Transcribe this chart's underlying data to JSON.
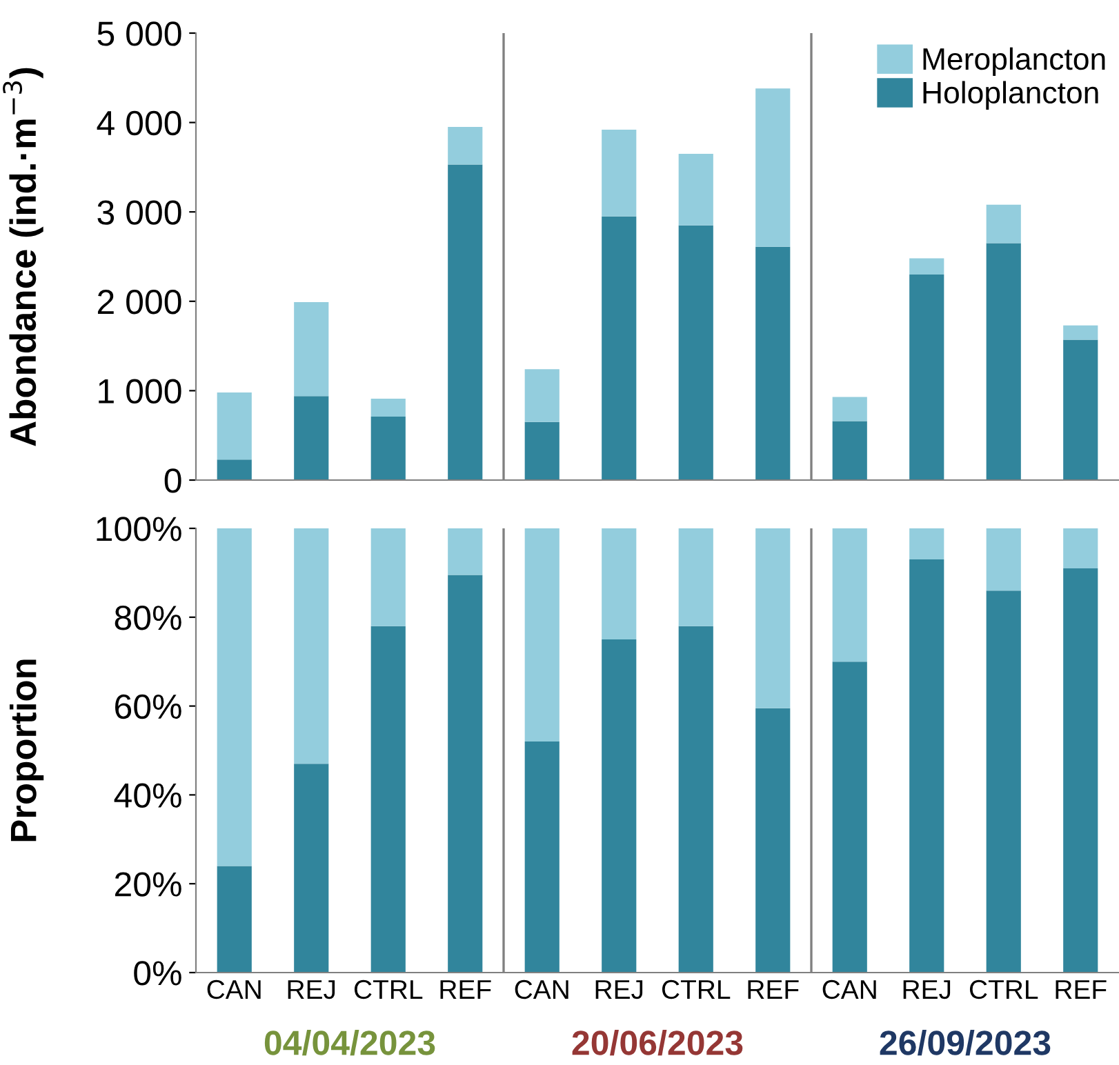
{
  "chart_data": [
    {
      "type": "bar",
      "stacked": true,
      "ylabel": "Abondance (ind.·m$^{−3}$)",
      "categories": [
        null,
        null,
        null,
        null,
        null,
        null,
        null,
        null,
        null,
        null,
        null,
        null
      ],
      "series": [
        {
          "name": "Holoplancton",
          "color": "#31859c",
          "values": [
            230,
            940,
            710,
            3530,
            650,
            2950,
            2850,
            2610,
            660,
            2300,
            2650,
            1570
          ]
        },
        {
          "name": "Meroplancton",
          "color": "#93cddd",
          "values": [
            750,
            1050,
            200,
            420,
            590,
            970,
            800,
            1770,
            270,
            180,
            430,
            160
          ]
        }
      ],
      "ylim": [
        0,
        5000
      ],
      "yticks": [
        {
          "value": 0,
          "label": "0"
        },
        {
          "value": 1000,
          "label": "1 000"
        },
        {
          "value": 2000,
          "label": "2 000"
        },
        {
          "value": 3000,
          "label": "3 000"
        },
        {
          "value": 4000,
          "label": "4 000"
        },
        {
          "value": 5000,
          "label": "5 000"
        }
      ],
      "legend": "top right",
      "tick_labels": "y",
      "grid": false
    },
    {
      "type": "bar",
      "stacked": true,
      "ylabel": "Proportion",
      "categories": [
        "CAN",
        "REJ",
        "CTRL",
        "REF",
        "CAN",
        "REJ",
        "CTRL",
        "REF",
        "CAN",
        "REJ",
        "CTRL",
        "REF"
      ],
      "series": [
        {
          "color": "#31859c",
          "values": [
            24,
            47,
            78,
            89.5,
            52,
            75,
            78,
            59.5,
            70,
            93,
            86,
            91
          ]
        },
        {
          "color": "#93cddd",
          "values": [
            76,
            53,
            22,
            10.5,
            48,
            25,
            22,
            40.5,
            30,
            7,
            14,
            9
          ]
        }
      ],
      "ylim": [
        0,
        100
      ],
      "yticks": [
        {
          "value": 0,
          "label": "0%"
        },
        {
          "value": 20,
          "label": "20%"
        },
        {
          "value": 40,
          "label": "40%"
        },
        {
          "value": 60,
          "label": "60%"
        },
        {
          "value": 80,
          "label": "80%"
        },
        {
          "value": 100,
          "label": "100%"
        }
      ],
      "annotations": [
        "04/04/2023",
        "20/06/2023",
        "26/09/2023"
      ],
      "grid": false
    }
  ]
}
